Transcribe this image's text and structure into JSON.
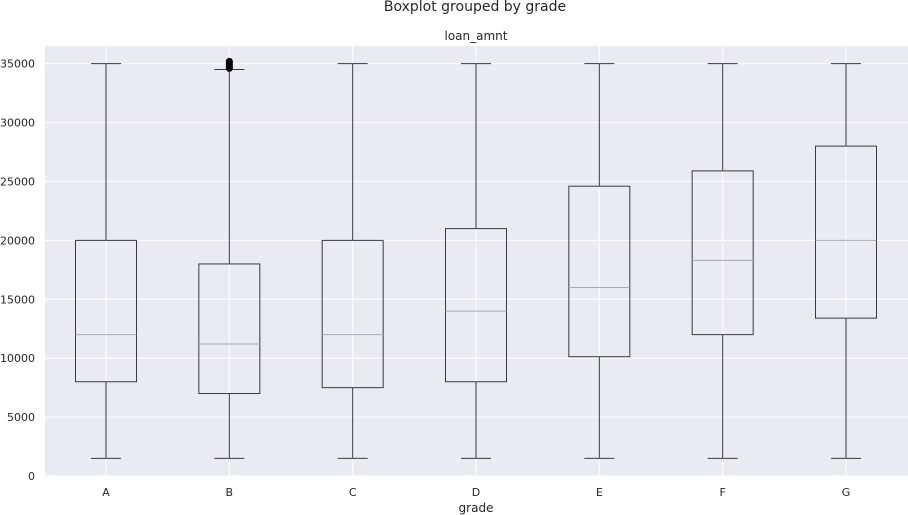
{
  "chart_data": {
    "type": "boxplot",
    "title": "Boxplot grouped by grade",
    "subtitle": "loan_amnt",
    "xlabel": "grade",
    "ylabel": "",
    "ylim": [
      0,
      36500
    ],
    "yticks": [
      0,
      5000,
      10000,
      15000,
      20000,
      25000,
      30000,
      35000
    ],
    "categories": [
      "A",
      "B",
      "C",
      "D",
      "E",
      "F",
      "G"
    ],
    "boxes": [
      {
        "category": "A",
        "whisker_low": 1500,
        "q1": 8000,
        "median": 12000,
        "q3": 20000,
        "whisker_high": 35000,
        "outliers": []
      },
      {
        "category": "B",
        "whisker_low": 1500,
        "q1": 7000,
        "median": 11200,
        "q3": 18000,
        "whisker_high": 34500,
        "outliers": [
          34600,
          34700,
          34800,
          34900,
          35000,
          35100,
          35200
        ]
      },
      {
        "category": "C",
        "whisker_low": 1500,
        "q1": 7500,
        "median": 12000,
        "q3": 20000,
        "whisker_high": 35000,
        "outliers": []
      },
      {
        "category": "D",
        "whisker_low": 1500,
        "q1": 8000,
        "median": 14000,
        "q3": 21000,
        "whisker_high": 35000,
        "outliers": []
      },
      {
        "category": "E",
        "whisker_low": 1500,
        "q1": 10125,
        "median": 16000,
        "q3": 24600,
        "whisker_high": 35000,
        "outliers": []
      },
      {
        "category": "F",
        "whisker_low": 1500,
        "q1": 12000,
        "median": 18300,
        "q3": 25900,
        "whisker_high": 35000,
        "outliers": []
      },
      {
        "category": "G",
        "whisker_low": 1500,
        "q1": 13400,
        "median": 20000,
        "q3": 28000,
        "whisker_high": 35000,
        "outliers": []
      }
    ],
    "grid": true,
    "colors": {
      "background": "#eaeaf2",
      "grid": "#ffffff",
      "box": "#3a3a3a",
      "median": "#aaaaaa",
      "outlier": "#000000"
    }
  }
}
